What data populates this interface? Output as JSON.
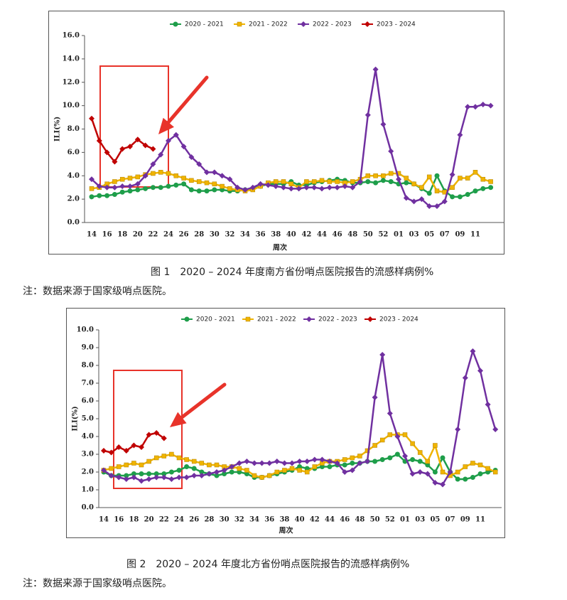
{
  "chart_data": [
    {
      "type": "line",
      "caption": "图 1　2020 – 2024 年度南方省份哨点医院报告的流感样病例%",
      "note": "注：数据来源于国家级哨点医院。",
      "y_label": "ILI(%)",
      "x_label": "周次",
      "categories": [
        "14",
        null,
        "16",
        null,
        "18",
        null,
        "20",
        null,
        "22",
        null,
        "24",
        null,
        "26",
        null,
        "28",
        null,
        "30",
        null,
        "32",
        null,
        "34",
        null,
        "36",
        null,
        "38",
        null,
        "40",
        null,
        "42",
        null,
        "44",
        null,
        "46",
        null,
        "48",
        null,
        "50",
        null,
        "52",
        null,
        "01",
        null,
        "03",
        null,
        "05",
        null,
        "07",
        null,
        "09",
        null,
        "11",
        null,
        null
      ],
      "ylim": [
        0,
        16
      ],
      "yticks": [
        {
          "value": 0,
          "label": "0.0"
        },
        {
          "value": 2,
          "label": "2.0"
        },
        {
          "value": 4,
          "label": "4.0"
        },
        {
          "value": 6,
          "label": "6.0"
        },
        {
          "value": 8,
          "label": "8.0"
        },
        {
          "value": 10,
          "label": "10.0"
        },
        {
          "value": 12,
          "label": "12.0"
        },
        {
          "value": 14,
          "label": "14.0"
        },
        {
          "value": 16,
          "label": "16.0"
        }
      ],
      "grid": false,
      "legend": "top",
      "series": [
        {
          "name": "2020 - 2021",
          "color": "#1e9e4a",
          "marker": "circle",
          "values": [
            2.2,
            2.3,
            2.3,
            2.4,
            2.6,
            2.7,
            2.8,
            2.9,
            3.0,
            3.0,
            3.1,
            3.2,
            3.3,
            2.8,
            2.7,
            2.7,
            2.8,
            2.8,
            2.7,
            2.7,
            2.8,
            2.9,
            3.1,
            3.3,
            3.3,
            3.3,
            3.5,
            3.2,
            3.2,
            3.4,
            3.5,
            3.6,
            3.7,
            3.6,
            3.4,
            3.4,
            3.5,
            3.4,
            3.6,
            3.5,
            3.3,
            3.4,
            3.3,
            2.9,
            2.5,
            4.0,
            2.7,
            2.2,
            2.2,
            2.4,
            2.7,
            2.9,
            3.0
          ]
        },
        {
          "name": "2021 - 2022",
          "color": "#f0b400",
          "marker": "square",
          "values": [
            2.9,
            3.0,
            3.3,
            3.5,
            3.7,
            3.8,
            3.9,
            4.1,
            4.2,
            4.3,
            4.2,
            4.0,
            3.8,
            3.6,
            3.5,
            3.4,
            3.3,
            3.1,
            2.9,
            2.8,
            2.7,
            2.8,
            3.1,
            3.4,
            3.5,
            3.5,
            3.3,
            3.0,
            3.5,
            3.5,
            3.6,
            3.5,
            3.5,
            3.4,
            3.5,
            3.7,
            4.0,
            4.0,
            4.0,
            4.2,
            4.2,
            3.8,
            3.3,
            3.0,
            3.9,
            2.7,
            2.6,
            3.0,
            3.8,
            3.8,
            4.3,
            3.7,
            3.5
          ]
        },
        {
          "name": "2022 - 2023",
          "color": "#7030a0",
          "marker": "diamond",
          "values": [
            3.7,
            3.1,
            3.0,
            3.0,
            3.1,
            3.1,
            3.3,
            4.0,
            5.0,
            5.8,
            7.0,
            7.5,
            6.5,
            5.6,
            5.0,
            4.3,
            4.3,
            4.0,
            3.7,
            3.0,
            2.8,
            3.0,
            3.3,
            3.2,
            3.1,
            3.0,
            2.9,
            2.9,
            3.0,
            3.0,
            2.9,
            3.0,
            3.0,
            3.1,
            3.0,
            3.5,
            9.2,
            13.1,
            8.4,
            6.1,
            3.7,
            2.1,
            1.8,
            2.0,
            1.4,
            1.4,
            1.8,
            4.1,
            7.5,
            9.9,
            9.9,
            10.1,
            10.0
          ]
        },
        {
          "name": "2023 - 2024",
          "color": "#c00000",
          "marker": "diamond",
          "values": [
            8.9,
            7.0,
            6.0,
            5.2,
            6.3,
            6.5,
            7.1,
            6.6,
            6.3,
            null,
            null,
            null,
            null,
            null,
            null,
            null,
            null,
            null,
            null,
            null,
            null,
            null,
            null,
            null,
            null,
            null,
            null,
            null,
            null,
            null,
            null,
            null,
            null,
            null,
            null,
            null,
            null,
            null,
            null,
            null,
            null,
            null,
            null,
            null,
            null,
            null,
            null,
            null,
            null,
            null,
            null,
            null,
            null
          ]
        }
      ]
    },
    {
      "type": "line",
      "caption": "图 2　2020 – 2024 年度北方省份哨点医院报告的流感样病例%",
      "note": "注：数据来源于国家级哨点医院。",
      "y_label": "ILI(%)",
      "x_label": "周次",
      "categories": [
        "14",
        null,
        "16",
        null,
        "18",
        null,
        "20",
        null,
        "22",
        null,
        "24",
        null,
        "26",
        null,
        "28",
        null,
        "30",
        null,
        "32",
        null,
        "34",
        null,
        "36",
        null,
        "38",
        null,
        "40",
        null,
        "42",
        null,
        "44",
        null,
        "46",
        null,
        "48",
        null,
        "50",
        null,
        "52",
        null,
        "01",
        null,
        "03",
        null,
        "05",
        null,
        "07",
        null,
        "09",
        null,
        "11",
        null,
        null
      ],
      "ylim": [
        0,
        10
      ],
      "yticks": [
        {
          "value": 0,
          "label": "0.0"
        },
        {
          "value": 1,
          "label": "1.0"
        },
        {
          "value": 2,
          "label": "2.0"
        },
        {
          "value": 3,
          "label": "3.0"
        },
        {
          "value": 4,
          "label": "4.0"
        },
        {
          "value": 5,
          "label": "5.0"
        },
        {
          "value": 6,
          "label": "6.0"
        },
        {
          "value": 7,
          "label": "7.0"
        },
        {
          "value": 8,
          "label": "8.0"
        },
        {
          "value": 9,
          "label": "9.0"
        },
        {
          "value": 10,
          "label": "10.0"
        }
      ],
      "grid": false,
      "legend": "top",
      "series": [
        {
          "name": "2020 - 2021",
          "color": "#1e9e4a",
          "marker": "circle",
          "values": [
            2.0,
            1.8,
            1.8,
            1.8,
            1.9,
            1.9,
            1.9,
            1.9,
            1.9,
            2.0,
            2.1,
            2.3,
            2.2,
            2.0,
            1.9,
            1.8,
            1.9,
            2.0,
            2.0,
            1.9,
            1.7,
            1.7,
            1.8,
            1.9,
            2.0,
            2.1,
            2.3,
            2.2,
            2.2,
            2.3,
            2.3,
            2.4,
            2.4,
            2.5,
            2.5,
            2.6,
            2.6,
            2.7,
            2.8,
            3.0,
            2.6,
            2.7,
            2.6,
            2.4,
            2.0,
            2.8,
            2.0,
            1.6,
            1.6,
            1.7,
            1.9,
            2.0,
            2.1
          ]
        },
        {
          "name": "2021 - 2022",
          "color": "#f0b400",
          "marker": "square",
          "values": [
            2.1,
            2.2,
            2.3,
            2.4,
            2.5,
            2.4,
            2.6,
            2.8,
            2.9,
            3.0,
            2.8,
            2.7,
            2.6,
            2.5,
            2.4,
            2.4,
            2.3,
            2.3,
            2.2,
            2.1,
            1.8,
            1.7,
            1.8,
            2.0,
            2.1,
            2.2,
            2.1,
            2.0,
            2.3,
            2.5,
            2.6,
            2.6,
            2.7,
            2.8,
            2.9,
            3.2,
            3.5,
            3.8,
            4.1,
            4.1,
            4.1,
            3.6,
            3.1,
            2.6,
            3.5,
            2.0,
            1.8,
            2.0,
            2.3,
            2.5,
            2.4,
            2.2,
            2.0
          ]
        },
        {
          "name": "2022 - 2023",
          "color": "#7030a0",
          "marker": "diamond",
          "values": [
            2.1,
            1.8,
            1.7,
            1.6,
            1.7,
            1.5,
            1.6,
            1.7,
            1.7,
            1.6,
            1.7,
            1.7,
            1.8,
            1.8,
            1.9,
            2.0,
            2.1,
            2.3,
            2.5,
            2.6,
            2.5,
            2.5,
            2.5,
            2.6,
            2.5,
            2.5,
            2.6,
            2.6,
            2.7,
            2.7,
            2.6,
            2.5,
            2.0,
            2.1,
            2.5,
            2.6,
            6.2,
            8.6,
            5.3,
            4.0,
            2.9,
            1.9,
            2.0,
            1.9,
            1.4,
            1.3,
            2.0,
            4.4,
            7.3,
            8.8,
            7.7,
            5.8,
            4.4
          ]
        },
        {
          "name": "2023 - 2024",
          "color": "#c00000",
          "marker": "diamond",
          "values": [
            3.2,
            3.1,
            3.4,
            3.2,
            3.5,
            3.4,
            4.1,
            4.2,
            3.9,
            null,
            null,
            null,
            null,
            null,
            null,
            null,
            null,
            null,
            null,
            null,
            null,
            null,
            null,
            null,
            null,
            null,
            null,
            null,
            null,
            null,
            null,
            null,
            null,
            null,
            null,
            null,
            null,
            null,
            null,
            null,
            null,
            null,
            null,
            null,
            null,
            null,
            null,
            null,
            null,
            null,
            null,
            null,
            null
          ]
        }
      ]
    }
  ]
}
